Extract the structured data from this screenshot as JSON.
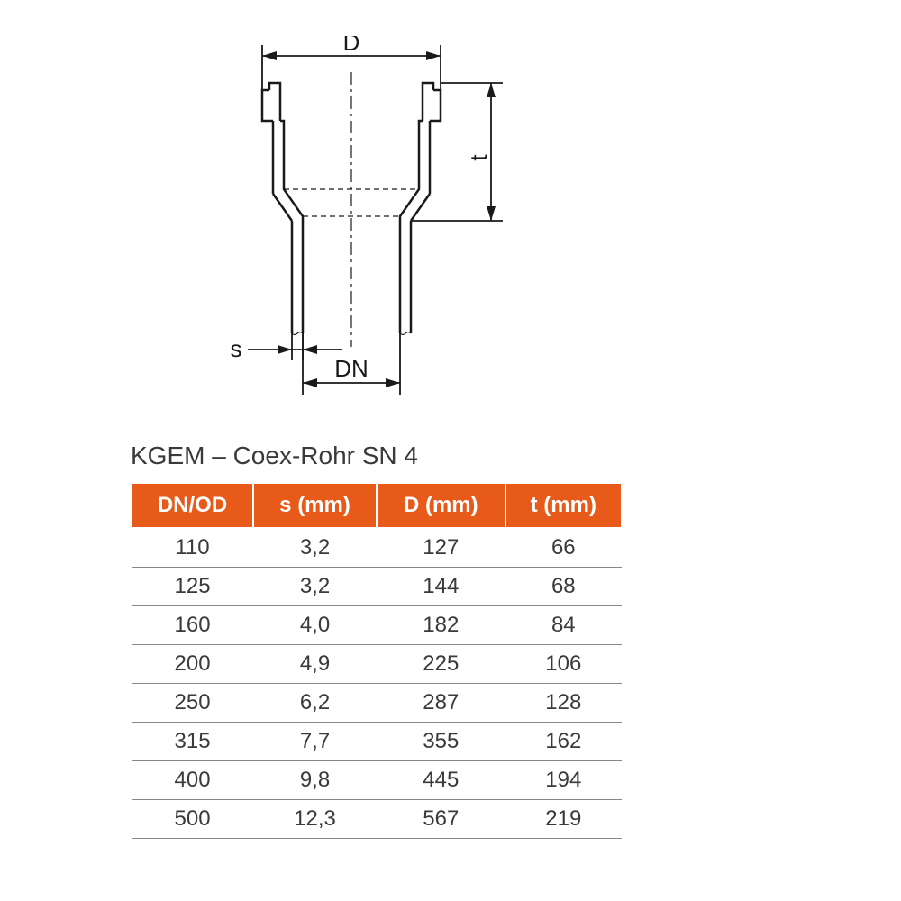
{
  "diagram": {
    "labels": {
      "D": "D",
      "t": "t",
      "s": "s",
      "DN": "DN"
    },
    "stroke_color": "#1a1a1a",
    "stroke_width_main": 2.5,
    "stroke_width_dim": 1.8,
    "stroke_width_thin": 1.2
  },
  "table": {
    "title": "KGEM – Coex-Rohr SN 4",
    "header_bg": "#e85a1a",
    "header_fg": "#ffffff",
    "text_color": "#3a3a3a",
    "columns": [
      "DN/OD",
      "s (mm)",
      "D (mm)",
      "t (mm)"
    ],
    "rows": [
      [
        "110",
        "3,2",
        "127",
        "66"
      ],
      [
        "125",
        "3,2",
        "144",
        "68"
      ],
      [
        "160",
        "4,0",
        "182",
        "84"
      ],
      [
        "200",
        "4,9",
        "225",
        "106"
      ],
      [
        "250",
        "6,2",
        "287",
        "128"
      ],
      [
        "315",
        "7,7",
        "355",
        "162"
      ],
      [
        "400",
        "9,8",
        "445",
        "194"
      ],
      [
        "500",
        "12,3",
        "567",
        "219"
      ]
    ]
  }
}
